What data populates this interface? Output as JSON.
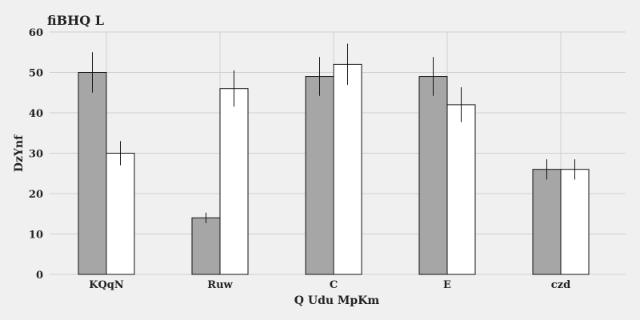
{
  "chart_data": {
    "type": "bar",
    "title": "fiBHQ  L",
    "xlabel": "Q  Udu MpKm",
    "ylabel": "DzYnf",
    "categories": [
      "KQqN",
      "Ruw",
      "C",
      "E",
      "czd"
    ],
    "ylim": [
      0,
      60
    ],
    "yticks": [
      0,
      10,
      20,
      30,
      40,
      50,
      60
    ],
    "grid": true,
    "series": [
      {
        "color": "#a6a6a6",
        "values": [
          50,
          14,
          49,
          49,
          26
        ],
        "errors": [
          5,
          1.3,
          4.8,
          4.8,
          2.5
        ]
      },
      {
        "color": "#ffffff",
        "values": [
          30,
          46,
          52,
          42,
          26
        ],
        "errors": [
          3,
          4.5,
          5.1,
          4.3,
          2.5
        ]
      }
    ]
  }
}
